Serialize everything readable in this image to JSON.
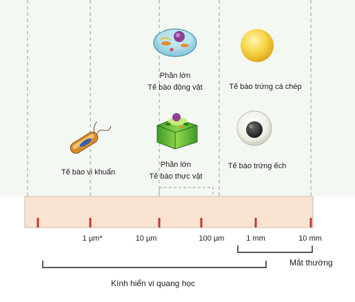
{
  "diagram": {
    "scale_ticks": [
      "1 µm*",
      "10 µm",
      "100 µm",
      "1 mm",
      "10 mm"
    ],
    "cells": {
      "bacteria": "Tế bào vi khuẩn",
      "animal_line1": "Phần lớn",
      "animal_line2": "Tế bào động vật",
      "plant_line1": "Phần lớn",
      "plant_line2": "Tế bào thực vật",
      "carp_egg": "Tế bào trứng cá chép",
      "frog_egg": "Tế bào trứng ếch"
    },
    "ranges": {
      "naked_eye": "Mắt thường",
      "light_microscope": "Kính hiển vi quang học"
    },
    "colors": {
      "band_fill": "#fbe3d2",
      "band_border": "#c9b8ad",
      "tick": "#c0392b",
      "dash": "#9a9a9a",
      "upper_bg": "#f4f8f3"
    },
    "icons": [
      "bacteria-icon",
      "animal-cell-icon",
      "plant-cell-icon",
      "carp-egg-icon",
      "frog-egg-icon"
    ]
  }
}
